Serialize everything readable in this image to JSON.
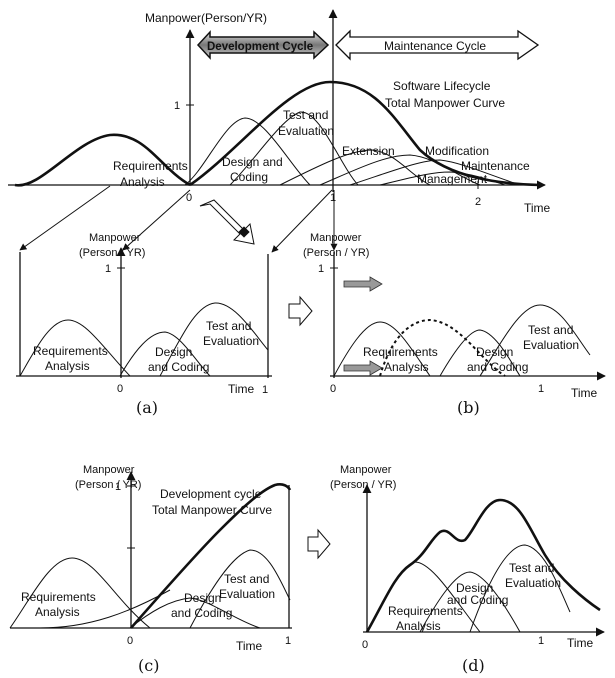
{
  "top": {
    "ylabel": "Manpower(Person/YR)",
    "banner_dev": "Development Cycle",
    "banner_maint": "Maintenance Cycle",
    "curve_title_1": "Software Lifecycle",
    "curve_title_2": "Total Manpower Curve",
    "phase_test_1": "Test and",
    "phase_test_2": "Evaluation",
    "phase_req_1": "Requirements",
    "phase_req_2": "Analysis",
    "phase_design_1": "Design and",
    "phase_design_2": "Coding",
    "phase_ext": "Extension",
    "phase_mod": "Modification",
    "phase_maint": "Maintenance",
    "phase_mgmt": "Management",
    "tick_y1": "1",
    "tick_x0": "0",
    "tick_x1": "1",
    "tick_x2": "2",
    "xlabel": "Time"
  },
  "panel_a": {
    "ylabel_1": "Manpower",
    "ylabel_2": "(Person / YR)",
    "tick_y1": "1",
    "phase_req_1": "Requirements",
    "phase_req_2": "Analysis",
    "phase_design_1": "Design",
    "phase_design_2": "and Coding",
    "phase_test_1": "Test and",
    "phase_test_2": "Evaluation",
    "tick_x0": "0",
    "xlabel": "Time",
    "tick_x1": "1",
    "caption": "(a)"
  },
  "panel_b": {
    "ylabel_1": "Manpower",
    "ylabel_2": "(Person / YR)",
    "tick_y1": "1",
    "phase_req_1": "Requirements",
    "phase_req_2": "Analysis",
    "phase_design_1": "Design",
    "phase_design_2": "and Coding",
    "phase_test_1": "Test and",
    "phase_test_2": "Evaluation",
    "tick_x0": "0",
    "tick_x1": "1",
    "xlabel": "Time",
    "caption": "(b)"
  },
  "panel_c": {
    "ylabel_1": "Manpower",
    "ylabel_2": "(Person / YR)",
    "tick_y1": "1",
    "curve_title_1": "Development cycle",
    "curve_title_2": "Total Manpower Curve",
    "phase_req_1": "Requirements",
    "phase_req_2": "Analysis",
    "phase_design_1": "Design",
    "phase_design_2": "and Coding",
    "phase_test_1": "Test and",
    "phase_test_2": "Evaluation",
    "tick_x0": "0",
    "xlabel": "Time",
    "tick_x1": "1",
    "caption": "(c)"
  },
  "panel_d": {
    "ylabel_1": "Manpower",
    "ylabel_2": "(Person / YR)",
    "phase_design_1": "Design",
    "phase_design_2": "and Coding",
    "phase_test_1": "Test and",
    "phase_test_2": "Evaluation",
    "phase_req_1": "Requirements",
    "phase_req_2": "Analysis",
    "tick_x0": "0",
    "tick_x1": "1",
    "xlabel": "Time",
    "caption": "(d)"
  }
}
